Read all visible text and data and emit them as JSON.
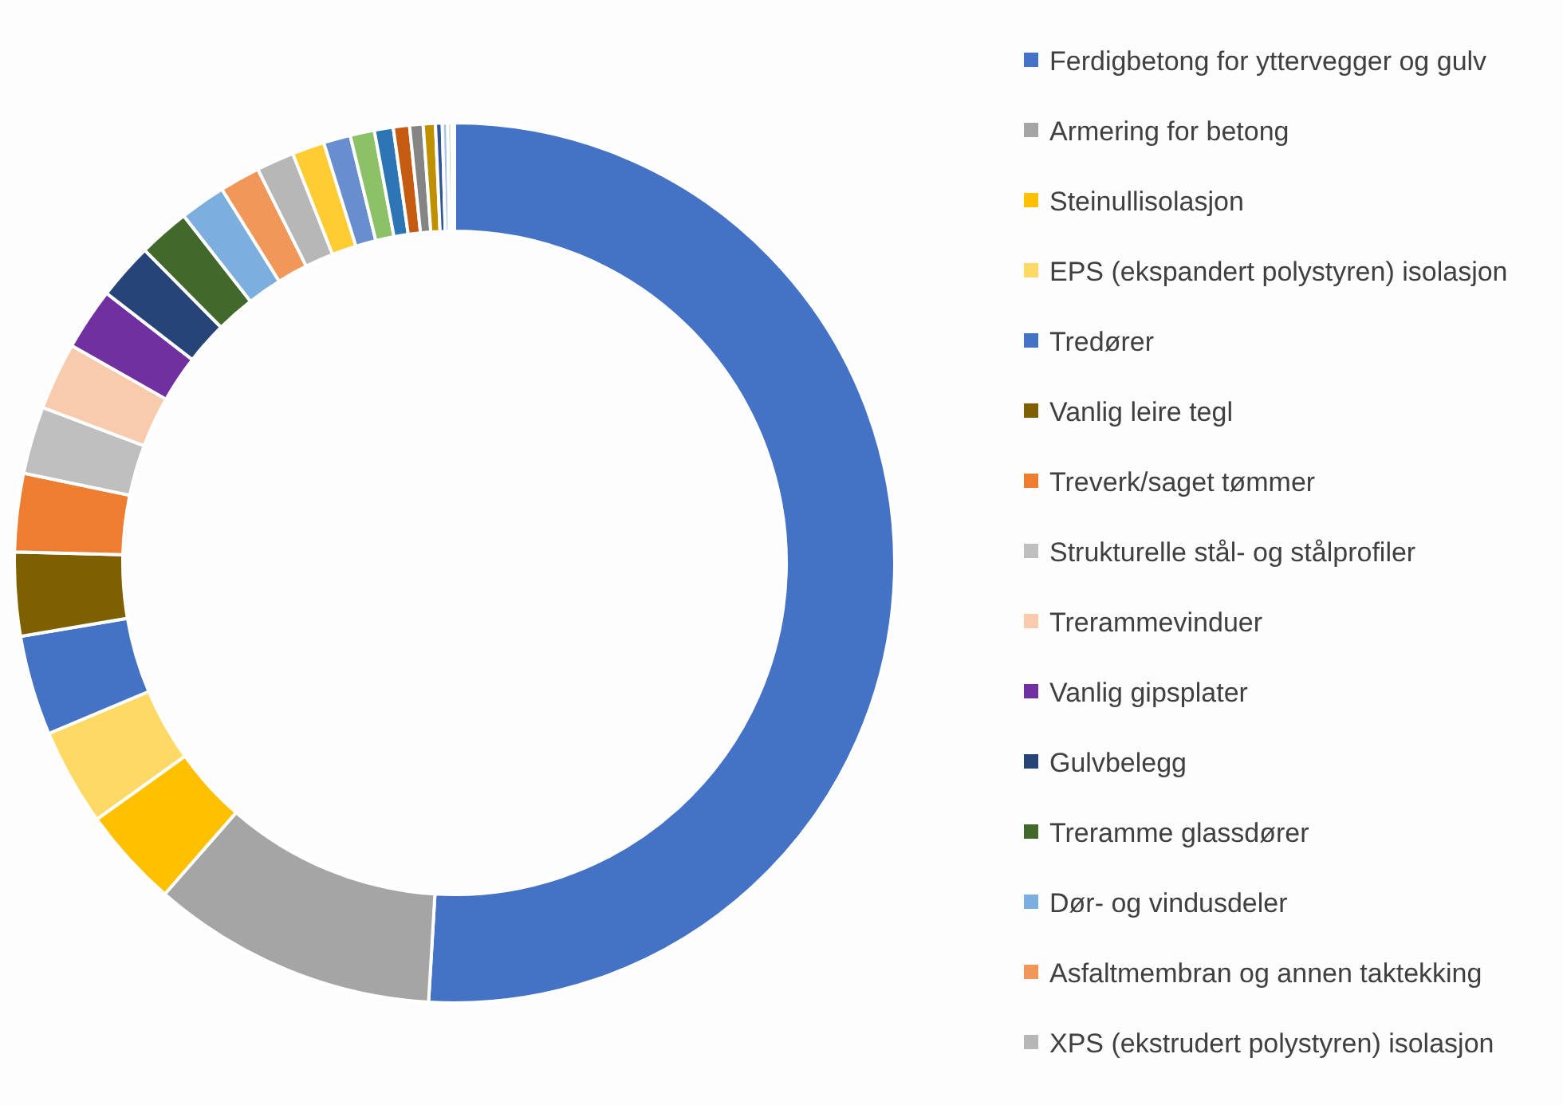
{
  "chart_data": {
    "type": "donut",
    "categories": [
      "Ferdigbetong for yttervegger og gulv",
      "Armering for betong",
      "Steinullisolasjon",
      "EPS (ekspandert polystyren) isolasjon",
      "Tredører",
      "Vanlig leire tegl",
      "Treverk/saget tømmer",
      "Strukturelle stål- og stålprofiler",
      "Trerammevinduer",
      "Vanlig gipsplater",
      "Gulvbelegg",
      "Treramme glassdører",
      "Dør- og vindusdeler",
      "Asfaltmembran og annen taktekking",
      "XPS (ekstrudert polystyren) isolasjon",
      null,
      null,
      null,
      null,
      null,
      null,
      null,
      null,
      null,
      null,
      null
    ],
    "values": [
      51.45,
      10.6,
      3.7,
      3.6,
      3.7,
      3.1,
      2.9,
      2.5,
      2.5,
      2.3,
      2.1,
      1.9,
      1.7,
      1.5,
      1.4,
      1.2,
      1.0,
      0.9,
      0.7,
      0.6,
      0.5,
      0.45,
      0.25,
      0.2,
      0.15,
      0.1
    ],
    "colors": [
      "#4472c4",
      "#a5a5a5",
      "#ffc000",
      "#ffd966",
      "#4472c4",
      "#7f6000",
      "#ed7d31",
      "#bfbfbf",
      "#f8cbad",
      "#7030a0",
      "#264478",
      "#43682b",
      "#7cafdd",
      "#f1975a",
      "#b7b7b7",
      "#ffcd33",
      "#698ed0",
      "#8cc168",
      "#2e75b6",
      "#c55a11",
      "#848484",
      "#bf9000",
      "#2f5597",
      "#a9c4eb",
      "#a9d18e",
      "#dae3f3"
    ],
    "legend": "right"
  }
}
